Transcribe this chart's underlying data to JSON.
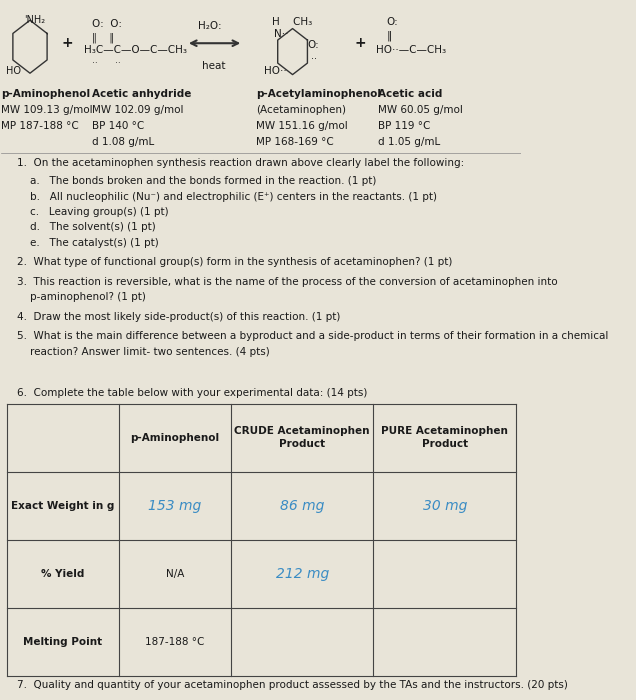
{
  "bg_color": "#e8e4d8",
  "text_color": "#1a1a1a",
  "compounds": [
    {
      "name": "p-Aminophenol",
      "line2": "MW 109.13 g/mol",
      "line3": "MP 187-188 °C",
      "line4": ""
    },
    {
      "name": "Acetic anhydride",
      "line2": "MW 102.09 g/mol",
      "line3": "BP 140 °C",
      "line4": "d 1.08 g/mL"
    },
    {
      "name": "p-Acetylaminophenol",
      "line2": "(Acetaminophen)",
      "line3": "MW 151.16 g/mol",
      "line4": "MP 168-169 °C"
    },
    {
      "name": "Acetic acid",
      "line2": "MW 60.05 g/mol",
      "line3": "BP 119 °C",
      "line4": "d 1.05 g/mL"
    }
  ],
  "q1_main": "On the acetaminophen synthesis reaction drawn above clearly label the following:",
  "q1_subs": [
    "a.   The bonds broken and the bonds formed in the reaction. (1 pt)",
    "b.   All nucleophilic (Nu⁻) and electrophilic (E⁺) centers in the reactants. (1 pt)",
    "c.   Leaving group(s) (1 pt)",
    "d.   The solvent(s) (1 pt)",
    "e.   The catalyst(s) (1 pt)"
  ],
  "q2": "What type of functional group(s) form in the synthesis of acetaminophen? (1 pt)",
  "q3a": "This reaction is reversible, what is the name of the process of the conversion of acetaminophen into",
  "q3b": "p-aminophenol? (1 pt)",
  "q4": "Draw the most likely side-product(s) of this reaction. (1 pt)",
  "q5a": "What is the main difference between a byproduct and a side-product in terms of their formation in a chemical",
  "q5b": "reaction? Answer limit- two sentences. (4 pts)",
  "q6": "Complete the table below with your experimental data: (14 pts)",
  "q7": "Quality and quantity of your acetaminophen product assessed by the TAs and the instructors. (20 pts)",
  "table_headers": [
    "",
    "p-Aminophenol",
    "CRUDE Acetaminophen\nProduct",
    "PURE Acetaminophen\nProduct"
  ],
  "table_row_labels": [
    "Exact Weight in g",
    "% Yield",
    "Melting Point"
  ],
  "table_data": [
    [
      "153 mg",
      "86 mg",
      "30 mg"
    ],
    [
      "N/A",
      "212 mg",
      ""
    ],
    [
      "187-188 °C",
      "",
      ""
    ]
  ],
  "table_handwritten": [
    [
      true,
      true,
      true
    ],
    [
      false,
      true,
      false
    ],
    [
      false,
      false,
      false
    ]
  ],
  "handwritten_color": "#3a8cc4"
}
